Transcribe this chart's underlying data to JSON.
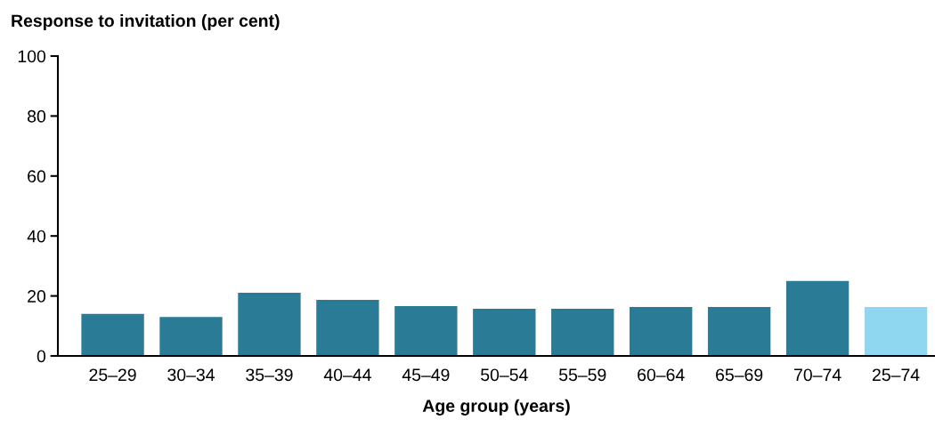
{
  "chart_data": {
    "type": "bar",
    "ylabel": "Response to invitation (per cent)",
    "xlabel": "Age group (years)",
    "categories": [
      "25–29",
      "30–34",
      "35–39",
      "40–44",
      "45–49",
      "50–54",
      "55–59",
      "60–64",
      "65–69",
      "70–74",
      "25–74"
    ],
    "values": [
      14,
      13,
      21.1,
      18.7,
      16.6,
      15.7,
      15.7,
      16.3,
      16.3,
      25,
      16.3
    ],
    "colors": [
      "#297b96",
      "#297b96",
      "#297b96",
      "#297b96",
      "#297b96",
      "#297b96",
      "#297b96",
      "#297b96",
      "#297b96",
      "#297b96",
      "#8fd7f0"
    ],
    "ylim": [
      0,
      100
    ],
    "yticks": [
      0,
      20,
      40,
      60,
      80,
      100
    ],
    "grid": false
  }
}
